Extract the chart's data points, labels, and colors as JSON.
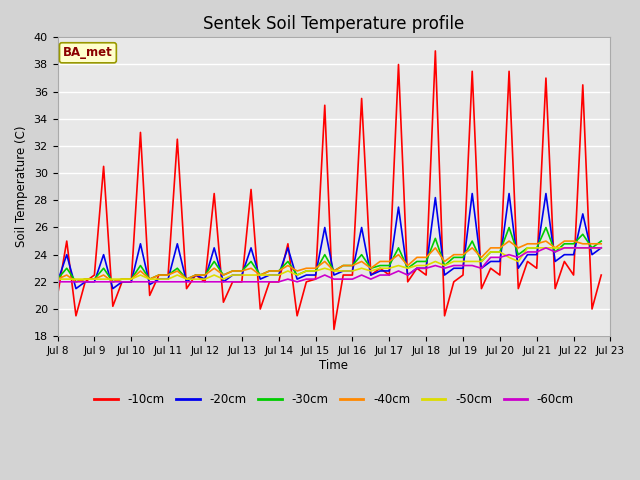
{
  "title": "Sentek Soil Temperature profile",
  "ylabel": "Soil Temperature (C)",
  "xlabel": "Time",
  "ylim": [
    18,
    40
  ],
  "site_label": "BA_met",
  "fig_bg": "#d3d3d3",
  "plot_bg": "#e8e8e8",
  "legend": [
    "-10cm",
    "-20cm",
    "-30cm",
    "-40cm",
    "-50cm",
    "-60cm"
  ],
  "line_colors": [
    "#ff0000",
    "#0000ee",
    "#00cc00",
    "#ff8800",
    "#dddd00",
    "#cc00cc"
  ],
  "x_tick_labels": [
    "Jul 8",
    "Jul 9",
    "Jul 10",
    "Jul 11",
    "Jul 12",
    "Jul 13",
    "Jul 14",
    "Jul 15",
    "Jul 16",
    "Jul 17",
    "Jul 18",
    "Jul 19",
    "Jul 20",
    "Jul 21",
    "Jul 22",
    "Jul 23"
  ],
  "days": 15,
  "points_per_day": 4,
  "data_10cm": [
    21.0,
    25.0,
    19.5,
    22.0,
    22.5,
    30.5,
    20.2,
    22.0,
    22.0,
    33.0,
    21.0,
    22.5,
    22.5,
    32.5,
    21.5,
    22.5,
    22.0,
    28.5,
    20.5,
    22.0,
    22.0,
    28.8,
    20.0,
    22.0,
    22.0,
    24.8,
    19.5,
    22.0,
    22.2,
    35.0,
    18.5,
    22.5,
    22.5,
    35.5,
    22.5,
    23.0,
    22.5,
    38.0,
    22.0,
    23.0,
    22.5,
    39.0,
    19.5,
    22.0,
    22.5,
    37.5,
    21.5,
    23.0,
    22.5,
    37.5,
    21.5,
    23.5,
    23.0,
    37.0,
    21.5,
    23.5,
    22.5,
    36.5,
    20.0,
    22.5
  ],
  "data_20cm": [
    22.0,
    24.0,
    21.5,
    22.0,
    22.0,
    24.0,
    21.5,
    22.0,
    22.0,
    24.8,
    21.8,
    22.2,
    22.2,
    24.8,
    22.0,
    22.5,
    22.2,
    24.5,
    22.0,
    22.5,
    22.5,
    24.5,
    22.2,
    22.5,
    22.5,
    24.5,
    22.2,
    22.5,
    22.5,
    26.0,
    22.5,
    22.8,
    22.8,
    26.0,
    22.5,
    22.8,
    22.8,
    27.5,
    22.5,
    23.0,
    23.0,
    28.2,
    22.5,
    23.0,
    23.0,
    28.5,
    23.0,
    23.5,
    23.5,
    28.5,
    23.0,
    24.0,
    24.0,
    28.5,
    23.5,
    24.0,
    24.0,
    27.0,
    24.0,
    24.5
  ],
  "data_30cm": [
    22.2,
    23.0,
    22.0,
    22.2,
    22.2,
    23.0,
    22.0,
    22.2,
    22.2,
    23.2,
    22.2,
    22.5,
    22.5,
    23.0,
    22.2,
    22.5,
    22.5,
    23.5,
    22.5,
    22.8,
    22.8,
    23.5,
    22.5,
    22.8,
    22.8,
    23.5,
    22.5,
    22.8,
    22.8,
    24.0,
    22.8,
    23.2,
    23.2,
    24.0,
    23.0,
    23.2,
    23.2,
    24.5,
    23.0,
    23.5,
    23.5,
    25.2,
    23.2,
    23.8,
    23.8,
    25.0,
    23.5,
    24.2,
    24.2,
    26.0,
    24.0,
    24.5,
    24.5,
    26.0,
    24.2,
    24.8,
    24.8,
    25.5,
    24.5,
    25.0
  ],
  "data_40cm": [
    22.2,
    22.5,
    22.0,
    22.2,
    22.2,
    22.5,
    22.0,
    22.2,
    22.2,
    22.8,
    22.2,
    22.5,
    22.5,
    22.8,
    22.2,
    22.5,
    22.5,
    23.0,
    22.5,
    22.8,
    22.8,
    23.0,
    22.5,
    22.8,
    22.8,
    23.2,
    22.8,
    23.0,
    23.0,
    23.5,
    22.8,
    23.2,
    23.2,
    23.5,
    23.0,
    23.5,
    23.5,
    24.0,
    23.2,
    23.8,
    23.8,
    24.5,
    23.5,
    24.0,
    24.0,
    24.5,
    23.8,
    24.5,
    24.5,
    25.0,
    24.5,
    24.8,
    24.8,
    25.0,
    24.5,
    25.0,
    25.0,
    24.8,
    24.8,
    24.8
  ],
  "data_50cm": [
    22.2,
    22.2,
    22.2,
    22.2,
    22.2,
    22.2,
    22.2,
    22.2,
    22.2,
    22.5,
    22.2,
    22.2,
    22.2,
    22.5,
    22.2,
    22.2,
    22.2,
    22.5,
    22.2,
    22.5,
    22.5,
    22.5,
    22.5,
    22.5,
    22.5,
    22.8,
    22.5,
    22.8,
    22.8,
    23.0,
    22.8,
    22.8,
    22.8,
    23.0,
    22.8,
    23.0,
    23.0,
    23.2,
    23.0,
    23.2,
    23.2,
    23.5,
    23.2,
    23.5,
    23.5,
    23.5,
    23.5,
    24.2,
    24.2,
    23.8,
    23.5,
    24.5,
    24.5,
    24.5,
    24.5,
    24.5,
    24.5,
    24.5,
    24.5,
    24.5
  ],
  "data_60cm": [
    22.0,
    22.0,
    22.0,
    22.0,
    22.0,
    22.0,
    22.0,
    22.0,
    22.0,
    22.0,
    22.0,
    22.0,
    22.0,
    22.0,
    22.0,
    22.0,
    22.0,
    22.0,
    22.0,
    22.0,
    22.0,
    22.0,
    22.0,
    22.0,
    22.0,
    22.2,
    22.0,
    22.2,
    22.2,
    22.5,
    22.2,
    22.2,
    22.2,
    22.5,
    22.2,
    22.5,
    22.5,
    22.8,
    22.5,
    23.0,
    23.0,
    23.2,
    23.0,
    23.2,
    23.2,
    23.2,
    23.0,
    23.8,
    23.8,
    24.0,
    23.8,
    24.2,
    24.2,
    24.5,
    24.2,
    24.5,
    24.5,
    24.5,
    24.5,
    24.5
  ]
}
